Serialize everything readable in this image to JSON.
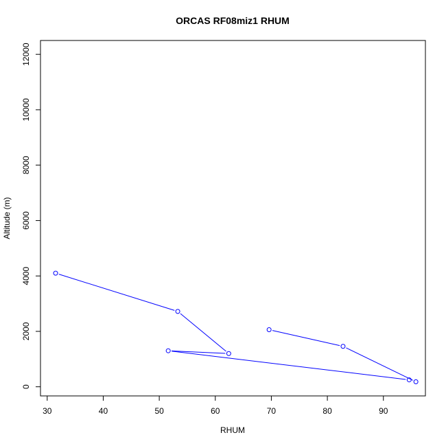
{
  "chart_data": {
    "type": "line",
    "title": "ORCAS RF08miz1 RHUM",
    "xlabel": "RHUM",
    "ylabel": "Altitude (m)",
    "xlim": [
      28.8,
      97.5
    ],
    "ylim": [
      -330,
      12500
    ],
    "xticks": [
      30,
      40,
      50,
      60,
      70,
      80,
      90
    ],
    "yticks": [
      0,
      2000,
      4000,
      6000,
      8000,
      10000,
      12000
    ],
    "series": [
      {
        "color": "#0000ff",
        "markers": "open-circle",
        "x": [
          31.5,
          53.3,
          62.4,
          51.6,
          94.6,
          95.8,
          82.8,
          69.6
        ],
        "y": [
          4100,
          2720,
          1200,
          1300,
          250,
          180,
          1460,
          2060
        ]
      }
    ]
  }
}
